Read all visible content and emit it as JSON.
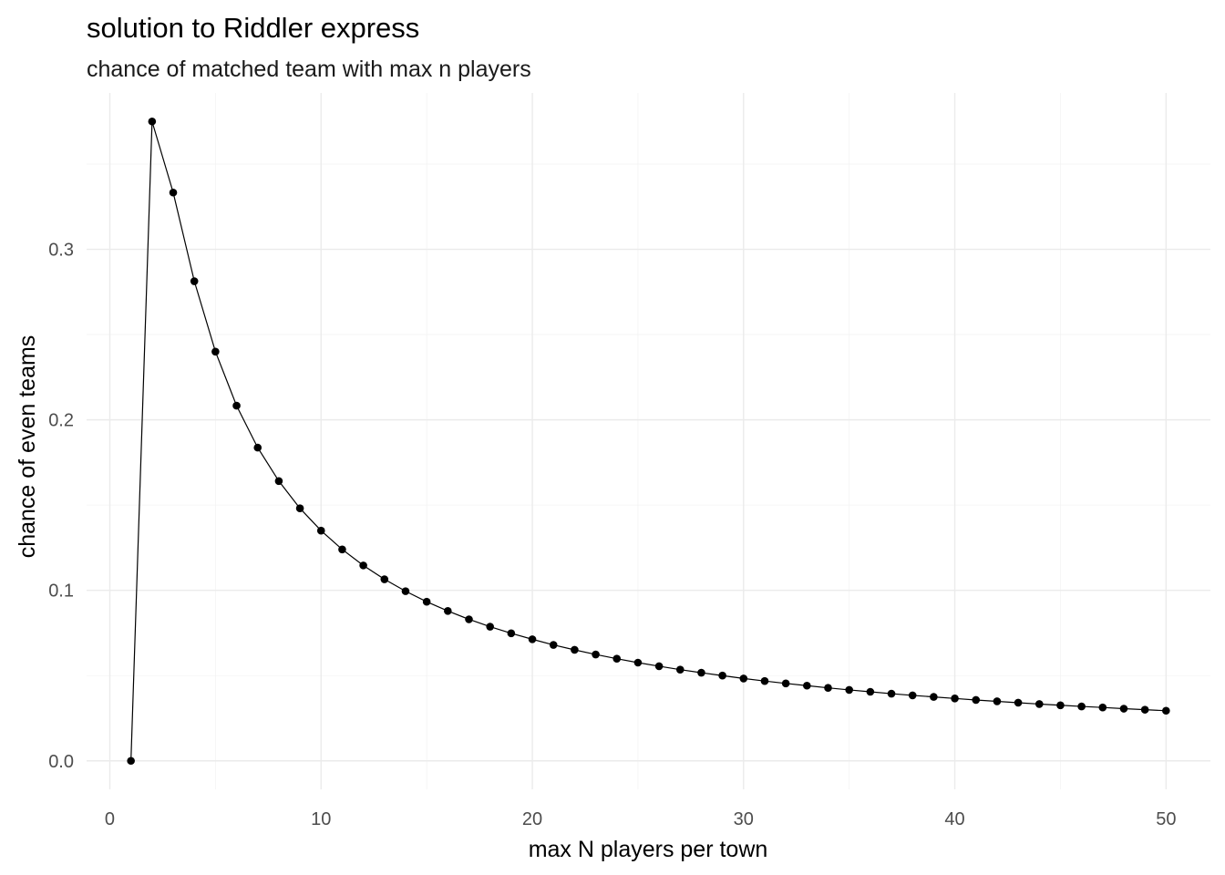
{
  "chart_data": {
    "type": "line",
    "title": "solution to Riddler express",
    "subtitle": "chance of matched team with max n players",
    "xlabel": "max N players per town",
    "ylabel": "chance of even teams",
    "xlim": [
      -1.1,
      52.1
    ],
    "ylim": [
      -0.0167,
      0.3917
    ],
    "x_ticks": [
      0,
      10,
      20,
      30,
      40,
      50
    ],
    "x_tick_labels": [
      "0",
      "10",
      "20",
      "30",
      "40",
      "50"
    ],
    "y_ticks": [
      0,
      0.1,
      0.2,
      0.3
    ],
    "y_tick_labels": [
      "0.0",
      "0.1",
      "0.2",
      "0.3"
    ],
    "grid": true,
    "legend": "none",
    "colors": {
      "line": "#000000",
      "points": "#000000",
      "grid": "#ebebeb",
      "background": "#ffffff"
    },
    "series": [
      {
        "x": [
          1,
          2,
          3,
          4,
          5,
          6,
          7,
          8,
          9,
          10,
          11,
          12,
          13,
          14,
          15,
          16,
          17,
          18,
          19,
          20,
          21,
          22,
          23,
          24,
          25,
          26,
          27,
          28,
          29,
          30,
          31,
          32,
          33,
          34,
          35,
          36,
          37,
          38,
          39,
          40,
          41,
          42,
          43,
          44,
          45,
          46,
          47,
          48,
          49,
          50
        ],
        "values": [
          0.0,
          0.375,
          0.3333,
          0.2813,
          0.24,
          0.2083,
          0.1837,
          0.1641,
          0.1481,
          0.135,
          0.124,
          0.1146,
          0.1065,
          0.0995,
          0.0933,
          0.0879,
          0.083,
          0.0787,
          0.0748,
          0.0713,
          0.068,
          0.0651,
          0.0624,
          0.0599,
          0.0576,
          0.0555,
          0.0535,
          0.0517,
          0.05,
          0.0483,
          0.0468,
          0.0454,
          0.0441,
          0.0428,
          0.0416,
          0.0405,
          0.0394,
          0.0384,
          0.0375,
          0.0366,
          0.0357,
          0.0349,
          0.0341,
          0.0333,
          0.0326,
          0.0319,
          0.0313,
          0.0306,
          0.03,
          0.0294
        ]
      }
    ]
  }
}
